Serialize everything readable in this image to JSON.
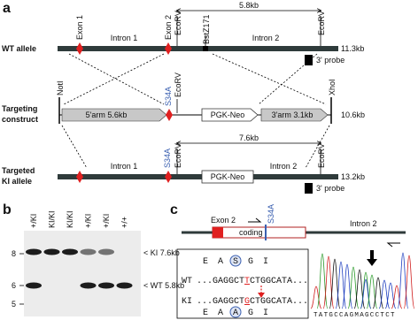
{
  "panel_a": {
    "label": "a",
    "wt_distance": "5.8kb",
    "ki_distance": "7.6kb",
    "wt_allele": {
      "name": "WT allele",
      "exon1": "Exon 1",
      "exon2": "Exon 2",
      "ecorv_1": "EcoRV",
      "bstz": "BstZ171",
      "ecorv_2": "EcoRV",
      "intron1": "Intron 1",
      "intron2": "Intron 2",
      "size": "11.3kb",
      "probe": "3' probe"
    },
    "construct": {
      "name_lines": [
        "Targeting",
        "construct"
      ],
      "noti": "NotI",
      "mutation": "S34A",
      "ecorv": "EcoRV",
      "xhoi": "XhoI",
      "arm5": "5'arm 5.6kb",
      "neo": "PGK-Neo",
      "arm3": "3'arm 3.1kb",
      "size": "10.6kb"
    },
    "ki_allele": {
      "name_lines": [
        "Targeted",
        "KI allele"
      ],
      "mutation": "S34A",
      "ecorv_1": "EcoRV",
      "ecorv_2": "EcoRV",
      "intron1": "Intron 1",
      "neo": "PGK-Neo",
      "intron2": "Intron 2",
      "size": "13.2kb",
      "probe": "3' probe"
    }
  },
  "panel_b": {
    "label": "b",
    "lanes": [
      "+/KI",
      "KI/KI",
      "KI/KI",
      "+/KI",
      "+/KI",
      "+/+"
    ],
    "markers": [
      "8",
      "6",
      "5"
    ],
    "ki_band": "< KI 7.6kb",
    "wt_band": "< WT 5.8kb"
  },
  "panel_c": {
    "label": "c",
    "exon": "Exon 2",
    "mutation": "S34A",
    "coding": "coding",
    "intron": "Intron 2",
    "wt_aa": [
      "E",
      "A",
      "S",
      "G",
      "I"
    ],
    "wt_label": "WT",
    "wt_seq": {
      "pre": "...GAGGCT",
      "mut": "T",
      "post": "CTGGCATA..."
    },
    "ki_label": "KI",
    "ki_seq": {
      "pre": "...GAGGCT",
      "mut": "G",
      "post": "CTGGCATA..."
    },
    "ki_aa": [
      "E",
      "A",
      "A",
      "G",
      "I"
    ],
    "bases": "TATGCCAGMAGCCTCT"
  }
}
